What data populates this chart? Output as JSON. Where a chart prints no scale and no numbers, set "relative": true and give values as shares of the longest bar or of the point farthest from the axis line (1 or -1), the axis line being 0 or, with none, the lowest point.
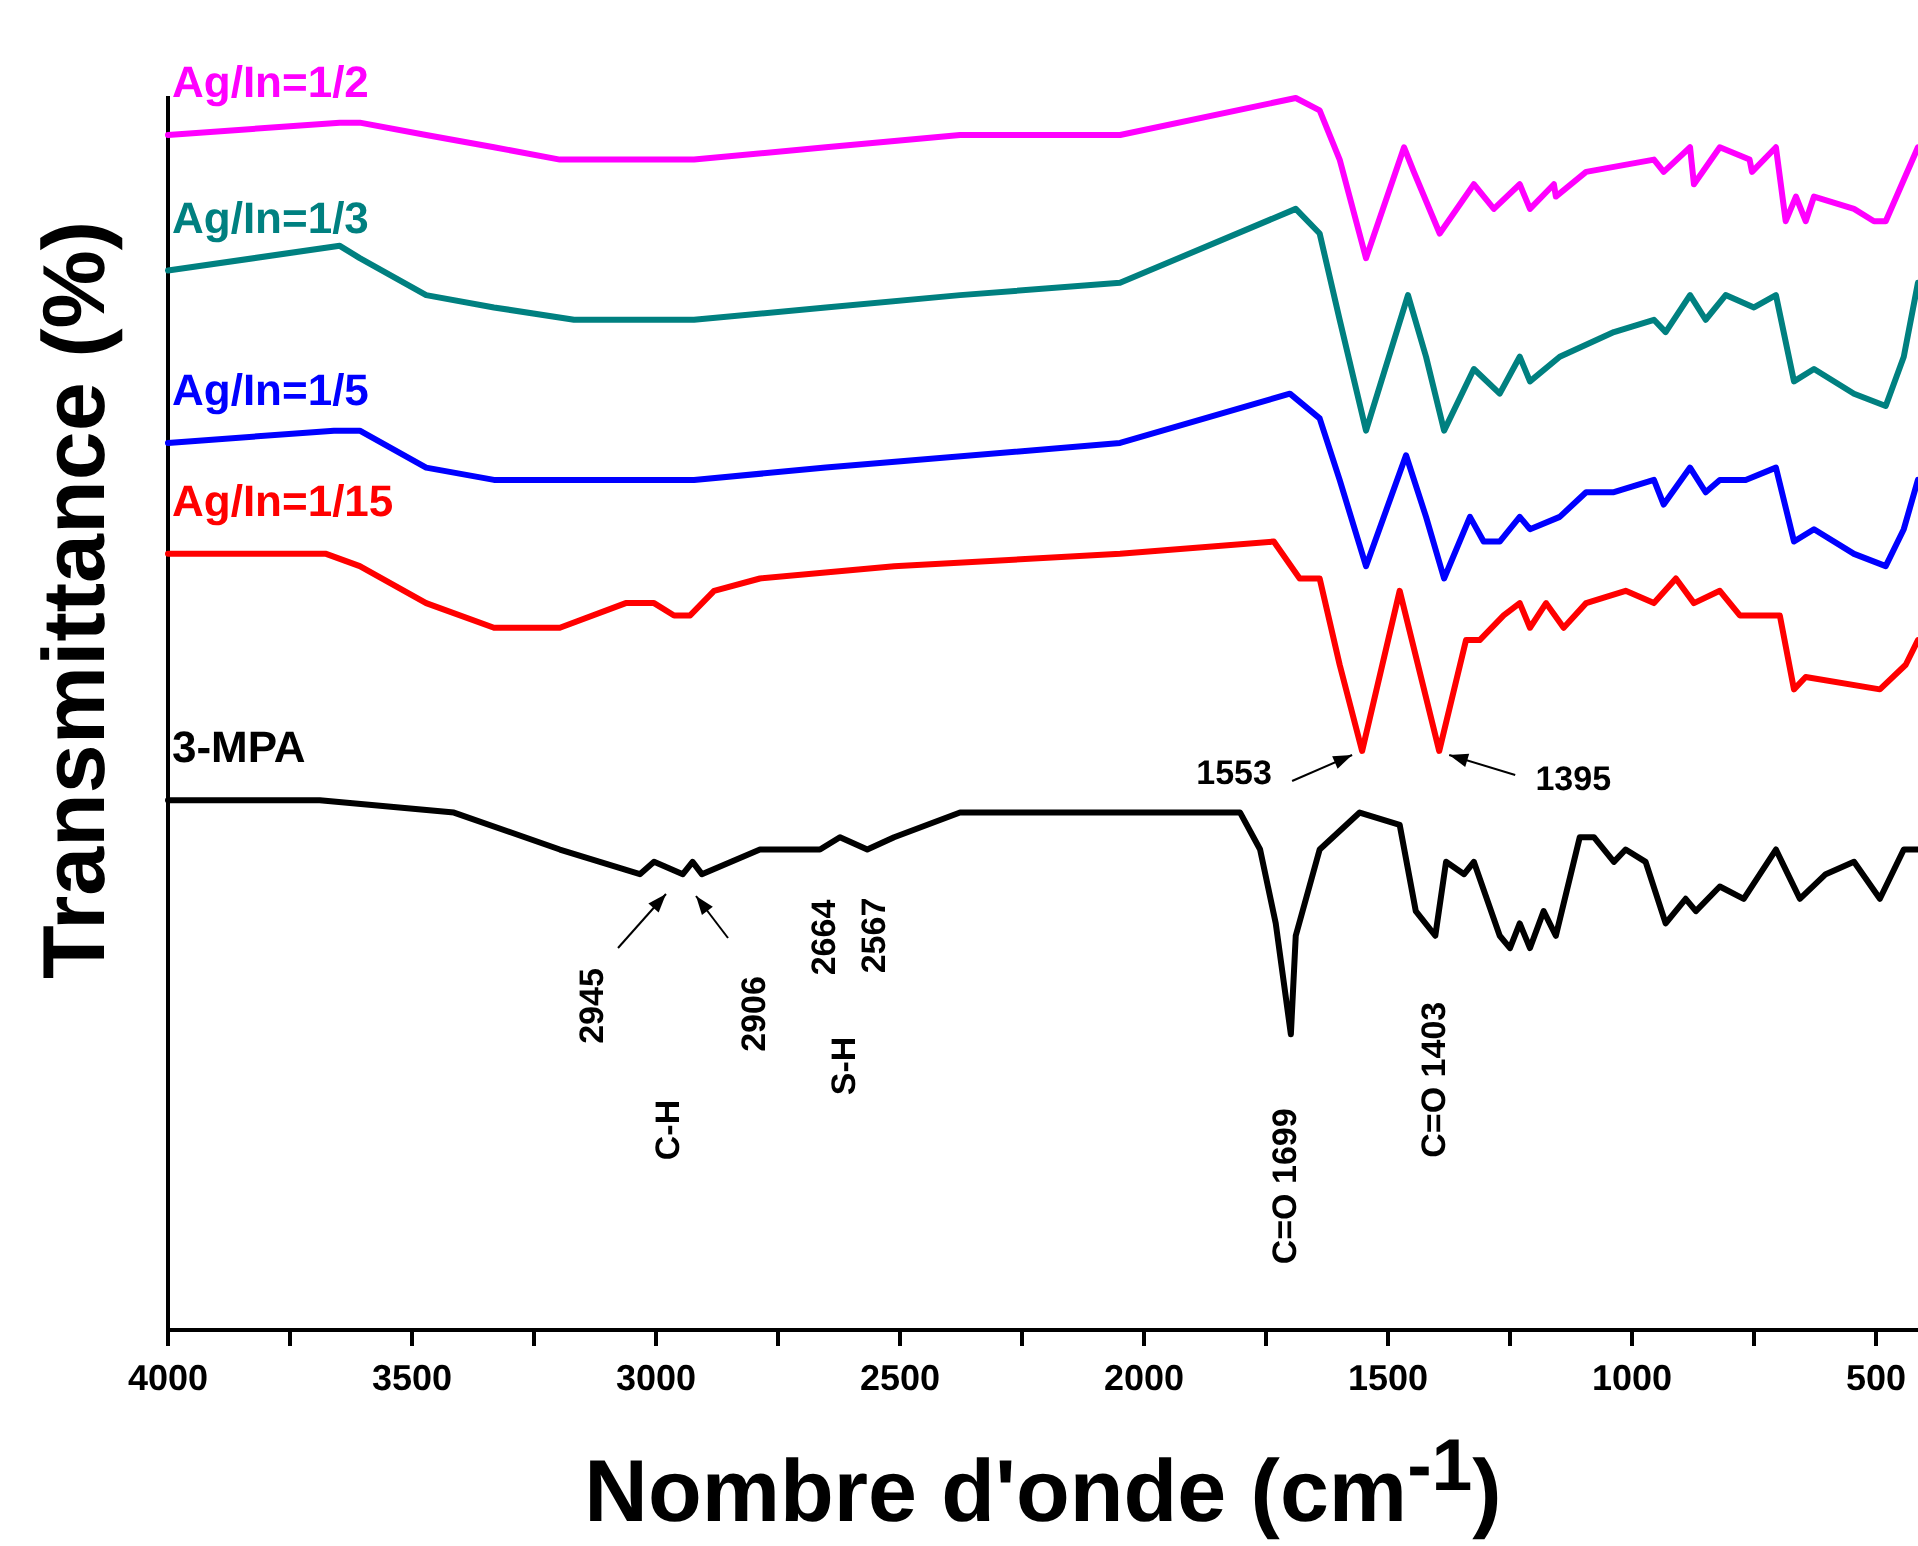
{
  "chart_data": {
    "type": "line",
    "xlabel": "Nombre d'onde (cm$^{-1}$)",
    "ylabel": "Transmittance (%)",
    "relative": true,
    "xlim": [
      4000,
      414
    ],
    "xticks": [
      4000,
      {
        "value": 3750,
        "label": null
      },
      3500,
      {
        "value": 3250,
        "label": null
      },
      3000,
      {
        "value": 2750,
        "label": null
      },
      2500,
      {
        "value": 2250,
        "label": null
      },
      2000,
      {
        "value": 1750,
        "label": null
      },
      1500,
      {
        "value": 1250,
        "label": null
      },
      1000,
      {
        "value": 750,
        "label": null
      },
      500
    ],
    "grid": false,
    "marker": "none",
    "line_style": "solid",
    "series": [
      {
        "name": "Ag/In=1/2",
        "color": "#ff00ff",
        "x": [
          4000,
          3648,
          3607,
          3471,
          3332,
          3197,
          2922,
          2652,
          2377,
          2049,
          1689,
          1640,
          1599,
          1545,
          1467,
          1447,
          1394,
          1324,
          1283,
          1230,
          1209,
          1160,
          1156,
          1094,
          955,
          935,
          881,
          873,
          820,
          759,
          754,
          705,
          685,
          664,
          644,
          627,
          545,
          504,
          480,
          414
        ],
        "values": [
          0.97,
          0.98,
          0.98,
          0.97,
          0.96,
          0.95,
          0.95,
          0.96,
          0.97,
          0.97,
          1.0,
          0.99,
          0.95,
          0.87,
          0.96,
          0.94,
          0.89,
          0.93,
          0.91,
          0.93,
          0.91,
          0.93,
          0.92,
          0.94,
          0.95,
          0.94,
          0.96,
          0.93,
          0.96,
          0.95,
          0.94,
          0.96,
          0.9,
          0.92,
          0.9,
          0.92,
          0.91,
          0.9,
          0.9,
          0.96
        ]
      },
      {
        "name": "Ag/In=1/3",
        "color": "#008080",
        "x": [
          4000,
          3648,
          3607,
          3471,
          3332,
          3168,
          2922,
          2652,
          2377,
          2049,
          1689,
          1640,
          1599,
          1545,
          1459,
          1422,
          1385,
          1324,
          1271,
          1230,
          1209,
          1148,
          1037,
          955,
          931,
          881,
          849,
          808,
          750,
          705,
          668,
          627,
          545,
          480,
          443,
          414
        ],
        "values": [
          0.86,
          0.88,
          0.87,
          0.84,
          0.83,
          0.82,
          0.82,
          0.83,
          0.84,
          0.85,
          0.91,
          0.89,
          0.82,
          0.73,
          0.84,
          0.79,
          0.73,
          0.78,
          0.76,
          0.79,
          0.77,
          0.79,
          0.81,
          0.82,
          0.81,
          0.84,
          0.82,
          0.84,
          0.83,
          0.84,
          0.77,
          0.78,
          0.76,
          0.75,
          0.79,
          0.85
        ]
      },
      {
        "name": "Ag/In=1/5",
        "color": "#0000ff",
        "x": [
          4000,
          3660,
          3607,
          3471,
          3332,
          3197,
          2922,
          2652,
          2049,
          1701,
          1640,
          1599,
          1545,
          1463,
          1422,
          1385,
          1332,
          1304,
          1271,
          1230,
          1209,
          1148,
          1094,
          1037,
          955,
          935,
          881,
          849,
          820,
          767,
          705,
          668,
          627,
          545,
          480,
          443,
          414
        ],
        "values": [
          0.72,
          0.73,
          0.73,
          0.7,
          0.69,
          0.69,
          0.69,
          0.7,
          0.72,
          0.76,
          0.74,
          0.69,
          0.62,
          0.71,
          0.66,
          0.61,
          0.66,
          0.64,
          0.64,
          0.66,
          0.65,
          0.66,
          0.68,
          0.68,
          0.69,
          0.67,
          0.7,
          0.68,
          0.69,
          0.69,
          0.7,
          0.64,
          0.65,
          0.63,
          0.62,
          0.65,
          0.69
        ]
      },
      {
        "name": "Ag/In=1/15",
        "color": "#ff0000",
        "x": [
          4000,
          3676,
          3607,
          3471,
          3332,
          3197,
          3062,
          3004,
          2963,
          2930,
          2881,
          2787,
          2512,
          2049,
          1734,
          1681,
          1640,
          1599,
          1553,
          1476,
          1395,
          1340,
          1312,
          1263,
          1230,
          1209,
          1176,
          1140,
          1094,
          1013,
          955,
          910,
          873,
          820,
          779,
          697,
          668,
          644,
          492,
          439,
          414
        ],
        "values": [
          0.63,
          0.63,
          0.62,
          0.59,
          0.57,
          0.57,
          0.59,
          0.59,
          0.58,
          0.58,
          0.6,
          0.61,
          0.62,
          0.63,
          0.64,
          0.61,
          0.61,
          0.54,
          0.47,
          0.6,
          0.47,
          0.56,
          0.56,
          0.58,
          0.59,
          0.57,
          0.59,
          0.57,
          0.59,
          0.6,
          0.59,
          0.61,
          0.59,
          0.6,
          0.58,
          0.58,
          0.52,
          0.53,
          0.52,
          0.54,
          0.56
        ]
      },
      {
        "name": "3-MPA",
        "color": "#000000",
        "x": [
          4000,
          3689,
          3414,
          3197,
          3033,
          3004,
          2945,
          2925,
          2906,
          2787,
          2664,
          2623,
          2567,
          2512,
          2377,
          2049,
          1803,
          1762,
          1730,
          1699,
          1689,
          1640,
          1558,
          1476,
          1443,
          1403,
          1381,
          1344,
          1324,
          1271,
          1250,
          1230,
          1209,
          1181,
          1156,
          1107,
          1078,
          1037,
          1013,
          972,
          931,
          890,
          869,
          820,
          771,
          705,
          656,
          603,
          545,
          492,
          443,
          414
        ],
        "values": [
          0.43,
          0.43,
          0.42,
          0.39,
          0.37,
          0.38,
          0.37,
          0.38,
          0.37,
          0.39,
          0.39,
          0.4,
          0.39,
          0.4,
          0.42,
          0.42,
          0.42,
          0.39,
          0.33,
          0.24,
          0.32,
          0.39,
          0.42,
          0.41,
          0.34,
          0.32,
          0.38,
          0.37,
          0.38,
          0.32,
          0.31,
          0.33,
          0.31,
          0.34,
          0.32,
          0.4,
          0.4,
          0.38,
          0.39,
          0.38,
          0.33,
          0.35,
          0.34,
          0.36,
          0.35,
          0.39,
          0.35,
          0.37,
          0.38,
          0.35,
          0.39,
          0.39
        ]
      }
    ],
    "annotations": [
      "2945",
      "2906",
      "C-H",
      {
        "text": "2664",
        "x": 2664,
        "y": 0.39
      },
      {
        "text": "2567",
        "x": 2567,
        "y": 0.39
      },
      "S-H",
      {
        "text": "C=O 1699",
        "x": 1699,
        "y": 0.24
      },
      {
        "text": "C=O 1403",
        "x": 1403,
        "y": 0.32
      },
      {
        "text": "1553",
        "x": 1553,
        "y": 0.47
      },
      {
        "text": "1395",
        "x": 1395,
        "y": 0.47
      }
    ]
  }
}
